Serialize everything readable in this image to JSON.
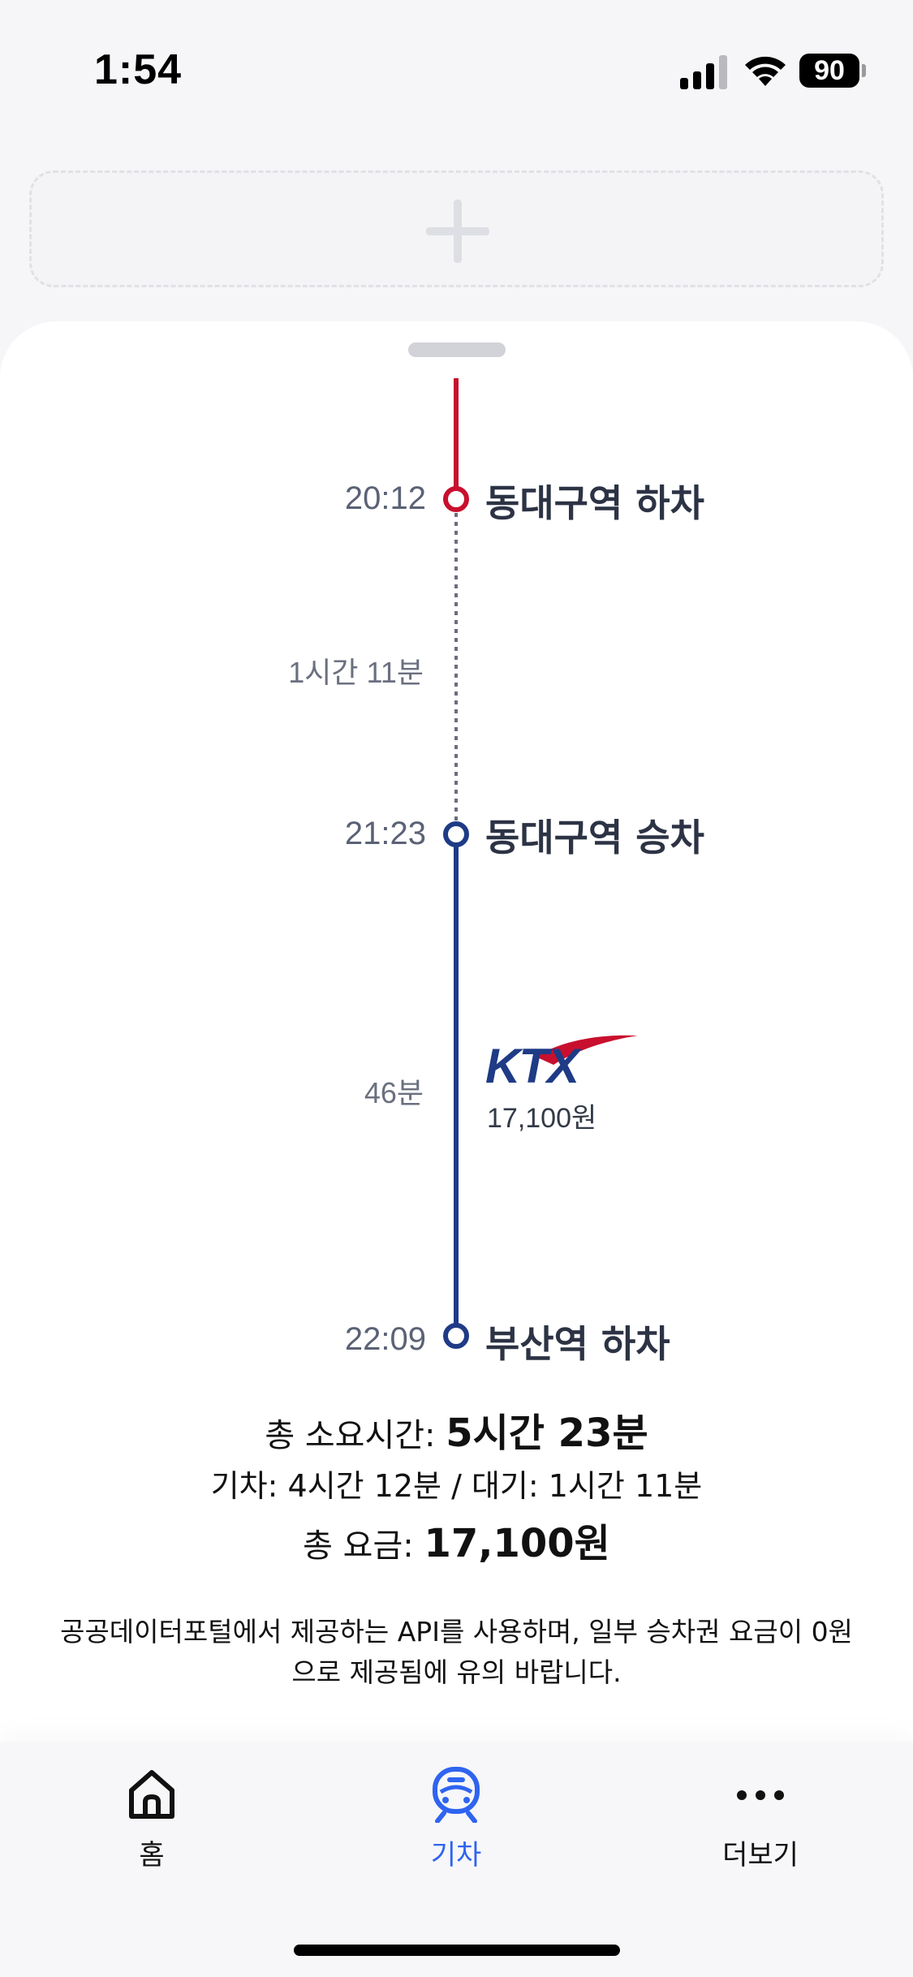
{
  "status_bar": {
    "time": "1:54",
    "battery": "90",
    "icons": [
      "signal-icon",
      "wifi-icon",
      "battery-icon"
    ]
  },
  "add_card": {
    "icon": "plus-icon"
  },
  "route": {
    "colors": {
      "alight_line": "#c8102e",
      "train_line": "#1f3b86",
      "wait_line": "#6b6e7a"
    },
    "stops": [
      {
        "time": "20:12",
        "station": "동대구역 하차"
      },
      {
        "time": "21:23",
        "station": "동대구역 승차"
      },
      {
        "time": "22:09",
        "station": "부산역 하차"
      }
    ],
    "wait_duration": "1시간 11분",
    "train": {
      "duration": "46분",
      "operator_logo": "KTX",
      "fare": "17,100원"
    }
  },
  "summary": {
    "total_time_label": "총 소요시간: ",
    "total_time_value": "5시간 23분",
    "detail": "기차: 4시간 12분 / 대기: 1시간 11분",
    "total_fare_label": "총 요금: ",
    "total_fare_value": "17,100원"
  },
  "notice": "공공데이터포털에서 제공하는 API를 사용하며, 일부 승차권 요금이 0원으로 제공됨에 유의 바랍니다.",
  "tab_bar": {
    "active_color": "#2f64f0",
    "tabs": [
      {
        "label": "홈",
        "icon": "home-icon"
      },
      {
        "label": "기차",
        "icon": "train-icon",
        "active": true
      },
      {
        "label": "더보기",
        "icon": "more-icon"
      }
    ]
  }
}
